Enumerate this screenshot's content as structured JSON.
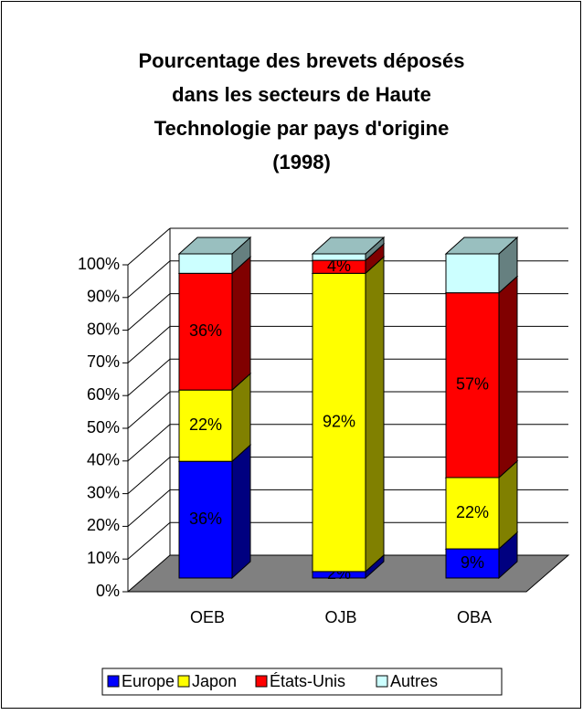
{
  "chart_data": {
    "type": "stacked-bar-3d",
    "title": [
      "Pourcentage des brevets déposés",
      "dans les secteurs de Haute",
      "Technologie  par pays d'origine",
      "(1998)"
    ],
    "categories": [
      "OEB",
      "OJB",
      "OBA"
    ],
    "series": [
      {
        "name": "Europe",
        "color": "#0000ff",
        "values": [
          36,
          2,
          9
        ],
        "value_labels": [
          "36%",
          "2%",
          "9%"
        ]
      },
      {
        "name": "Japon",
        "color": "#ffff00",
        "values": [
          22,
          92,
          22
        ],
        "value_labels": [
          "22%",
          "92%",
          "22%"
        ]
      },
      {
        "name": "États-Unis",
        "color": "#ff0000",
        "values": [
          36,
          4,
          57
        ],
        "value_labels": [
          "36%",
          "4%",
          "57%"
        ]
      },
      {
        "name": "Autres",
        "color": "#ccffff",
        "values": [
          6,
          2,
          12
        ]
      }
    ],
    "ylim": [
      0,
      100
    ],
    "yticks": [
      {
        "value": 0,
        "label": "0%"
      },
      {
        "value": 10,
        "label": "10%"
      },
      {
        "value": 20,
        "label": "20%"
      },
      {
        "value": 30,
        "label": "30%"
      },
      {
        "value": 40,
        "label": "40%"
      },
      {
        "value": 50,
        "label": "50%"
      },
      {
        "value": 60,
        "label": "60%"
      },
      {
        "value": 70,
        "label": "70%"
      },
      {
        "value": 80,
        "label": "80%"
      },
      {
        "value": 90,
        "label": "90%"
      },
      {
        "value": 100,
        "label": "100%"
      }
    ],
    "grid": true,
    "legend": "bottom"
  }
}
